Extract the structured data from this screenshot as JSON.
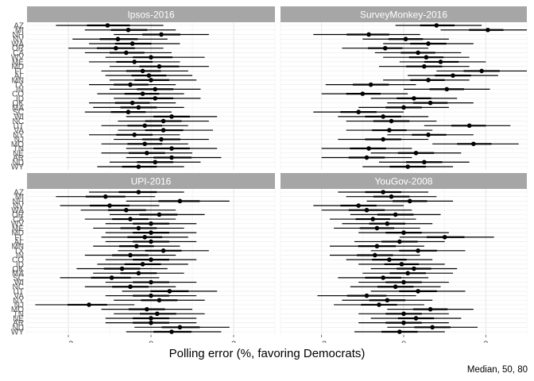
{
  "chart_data": {
    "type": "scatter",
    "xlabel": "Polling error (%, favoring Democrats)",
    "caption": "Median, 50, 80",
    "xlim": [
      -3,
      3
    ],
    "x_ticks": [
      -2,
      0,
      2
    ],
    "grid": true,
    "y_tick_labels": [
      "AZ",
      "MI",
      "NH",
      "NV",
      "WA",
      "OR",
      "CA",
      "WV",
      "ME",
      "MD",
      "FL",
      "AL",
      "MN",
      "TX",
      "IN",
      "CO",
      "ID",
      "OK",
      "MA",
      "SC",
      "WI",
      "NC",
      "UT",
      "VA",
      "NY",
      "NJ",
      "MO",
      "TN",
      "NE",
      "AR",
      "ND",
      "WY"
    ],
    "panels": [
      {
        "title": "Ipsos-2016",
        "rows": [
          {
            "median": -1.05,
            "lo80": -2.3,
            "hi80": 0.3
          },
          {
            "median": -0.55,
            "lo80": -1.6,
            "hi80": 0.6
          },
          {
            "median": 0.25,
            "lo80": -0.9,
            "hi80": 1.4
          },
          {
            "median": -0.8,
            "lo80": -1.9,
            "hi80": 0.4
          },
          {
            "median": -0.45,
            "lo80": -1.5,
            "hi80": 0.7
          },
          {
            "median": -0.85,
            "lo80": -2.0,
            "hi80": 0.3
          },
          {
            "median": -0.6,
            "lo80": -1.6,
            "hi80": 0.5
          },
          {
            "median": 0.0,
            "lo80": -1.1,
            "hi80": 1.3
          },
          {
            "median": -0.4,
            "lo80": -1.5,
            "hi80": 0.7
          },
          {
            "median": 0.2,
            "lo80": -1.0,
            "hi80": 1.4
          },
          {
            "median": -0.2,
            "lo80": -1.2,
            "hi80": 0.9
          },
          {
            "median": -0.05,
            "lo80": -1.1,
            "hi80": 1.0
          },
          {
            "median": 0.0,
            "lo80": -1.0,
            "hi80": 1.1
          },
          {
            "median": -0.5,
            "lo80": -1.5,
            "hi80": 0.6
          },
          {
            "median": 0.1,
            "lo80": -1.0,
            "hi80": 1.2
          },
          {
            "median": -0.2,
            "lo80": -1.3,
            "hi80": 0.8
          },
          {
            "median": 0.1,
            "lo80": -0.9,
            "hi80": 1.2
          },
          {
            "median": -0.45,
            "lo80": -1.5,
            "hi80": 0.6
          },
          {
            "median": -0.3,
            "lo80": -1.4,
            "hi80": 0.8
          },
          {
            "median": -0.55,
            "lo80": -1.6,
            "hi80": 0.5
          },
          {
            "median": 0.5,
            "lo80": -0.6,
            "hi80": 1.6
          },
          {
            "median": 0.3,
            "lo80": -0.8,
            "hi80": 1.4
          },
          {
            "median": -0.15,
            "lo80": -1.2,
            "hi80": 0.9
          },
          {
            "median": 0.3,
            "lo80": -0.8,
            "hi80": 1.5
          },
          {
            "median": -0.4,
            "lo80": -1.5,
            "hi80": 0.7
          },
          {
            "median": 0.25,
            "lo80": -0.9,
            "hi80": 1.4
          },
          {
            "median": -0.15,
            "lo80": -1.2,
            "hi80": 0.9
          },
          {
            "median": 0.5,
            "lo80": -0.6,
            "hi80": 1.6
          },
          {
            "median": -0.1,
            "lo80": -1.2,
            "hi80": 1.0
          },
          {
            "median": 0.5,
            "lo80": -0.6,
            "hi80": 1.7
          },
          {
            "median": 0.1,
            "lo80": -1.0,
            "hi80": 1.2
          },
          {
            "median": -0.3,
            "lo80": -1.3,
            "hi80": 0.8
          }
        ]
      },
      {
        "title": "SurveyMonkey-2016",
        "rows": [
          {
            "median": 0.8,
            "lo80": -0.2,
            "hi80": 1.9
          },
          {
            "median": 2.05,
            "lo80": 0.9,
            "hi80": 3.0
          },
          {
            "median": -0.85,
            "lo80": -2.2,
            "hi80": 0.4
          },
          {
            "median": 0.05,
            "lo80": -1.0,
            "hi80": 1.1
          },
          {
            "median": 0.6,
            "lo80": -0.5,
            "hi80": 1.7
          },
          {
            "median": -0.45,
            "lo80": -1.5,
            "hi80": 0.6
          },
          {
            "median": 0.35,
            "lo80": -0.7,
            "hi80": 1.4
          },
          {
            "median": 0.55,
            "lo80": -0.5,
            "hi80": 1.6
          },
          {
            "median": 0.9,
            "lo80": -0.1,
            "hi80": 2.0
          },
          {
            "median": 0.5,
            "lo80": -0.6,
            "hi80": 1.6
          },
          {
            "median": 1.9,
            "lo80": 0.8,
            "hi80": 3.0
          },
          {
            "median": 1.2,
            "lo80": 0.1,
            "hi80": 2.3
          },
          {
            "median": 0.6,
            "lo80": -0.5,
            "hi80": 1.6
          },
          {
            "median": -0.8,
            "lo80": -1.9,
            "hi80": 0.3
          },
          {
            "median": 1.05,
            "lo80": 0.0,
            "hi80": 2.1
          },
          {
            "median": -1.0,
            "lo80": -2.0,
            "hi80": 0.1
          },
          {
            "median": 0.25,
            "lo80": -0.8,
            "hi80": 1.3
          },
          {
            "median": 0.65,
            "lo80": -0.4,
            "hi80": 1.7
          },
          {
            "median": 0.0,
            "lo80": -1.1,
            "hi80": 1.1
          },
          {
            "median": -1.1,
            "lo80": -2.2,
            "hi80": 0.0
          },
          {
            "median": -0.5,
            "lo80": -1.6,
            "hi80": 0.6
          },
          {
            "median": -0.3,
            "lo80": -1.4,
            "hi80": 0.8
          },
          {
            "median": 1.6,
            "lo80": 0.5,
            "hi80": 2.6
          },
          {
            "median": -0.35,
            "lo80": -1.4,
            "hi80": 0.7
          },
          {
            "median": 0.6,
            "lo80": -0.4,
            "hi80": 1.7
          },
          {
            "median": -0.5,
            "lo80": -1.6,
            "hi80": 0.6
          },
          {
            "median": 1.7,
            "lo80": 0.7,
            "hi80": 2.8
          },
          {
            "median": -0.85,
            "lo80": -2.0,
            "hi80": 0.2
          },
          {
            "median": 0.3,
            "lo80": -0.8,
            "hi80": 1.4
          },
          {
            "median": -0.9,
            "lo80": -2.0,
            "hi80": 0.2
          },
          {
            "median": 0.5,
            "lo80": -0.6,
            "hi80": 1.6
          },
          {
            "median": 0.1,
            "lo80": -1.0,
            "hi80": 1.2
          }
        ]
      },
      {
        "title": "UPI-2016",
        "rows": [
          {
            "median": -0.3,
            "lo80": -1.5,
            "hi80": 0.8
          },
          {
            "median": -1.1,
            "lo80": -2.3,
            "hi80": 0.1
          },
          {
            "median": 0.7,
            "lo80": -0.6,
            "hi80": 1.9
          },
          {
            "median": -1.0,
            "lo80": -2.2,
            "hi80": 0.2
          },
          {
            "median": -0.6,
            "lo80": -1.7,
            "hi80": 0.6
          },
          {
            "median": 0.2,
            "lo80": -1.0,
            "hi80": 1.3
          },
          {
            "median": -0.5,
            "lo80": -1.6,
            "hi80": 0.6
          },
          {
            "median": 0.0,
            "lo80": -1.1,
            "hi80": 1.1
          },
          {
            "median": -0.3,
            "lo80": -1.4,
            "hi80": 0.8
          },
          {
            "median": 0.0,
            "lo80": -1.1,
            "hi80": 1.1
          },
          {
            "median": -0.15,
            "lo80": -1.2,
            "hi80": 0.9
          },
          {
            "median": 0.0,
            "lo80": -1.1,
            "hi80": 1.1
          },
          {
            "median": -0.35,
            "lo80": -1.4,
            "hi80": 0.7
          },
          {
            "median": 0.3,
            "lo80": -0.8,
            "hi80": 1.4
          },
          {
            "median": -0.5,
            "lo80": -1.6,
            "hi80": 0.6
          },
          {
            "median": 0.0,
            "lo80": -1.1,
            "hi80": 1.1
          },
          {
            "median": -0.2,
            "lo80": -1.3,
            "hi80": 0.9
          },
          {
            "median": -0.7,
            "lo80": -1.8,
            "hi80": 0.4
          },
          {
            "median": -0.3,
            "lo80": -1.4,
            "hi80": 0.8
          },
          {
            "median": -0.95,
            "lo80": -2.2,
            "hi80": 0.2
          },
          {
            "median": 0.0,
            "lo80": -1.1,
            "hi80": 1.1
          },
          {
            "median": -0.5,
            "lo80": -1.6,
            "hi80": 0.6
          },
          {
            "median": 0.45,
            "lo80": -0.7,
            "hi80": 1.6
          },
          {
            "median": 0.0,
            "lo80": -1.1,
            "hi80": 1.1
          },
          {
            "median": 0.2,
            "lo80": -0.9,
            "hi80": 1.3
          },
          {
            "median": -1.5,
            "lo80": -2.8,
            "hi80": -0.4
          },
          {
            "median": -0.1,
            "lo80": -1.2,
            "hi80": 1.0
          },
          {
            "median": 0.15,
            "lo80": -0.9,
            "hi80": 1.3
          },
          {
            "median": 0.0,
            "lo80": -1.1,
            "hi80": 1.1
          },
          {
            "median": 0.0,
            "lo80": -1.1,
            "hi80": 1.1
          },
          {
            "median": 0.7,
            "lo80": -0.4,
            "hi80": 1.9
          },
          {
            "median": 0.5,
            "lo80": -0.6,
            "hi80": 1.7
          }
        ]
      },
      {
        "title": "YouGov-2008",
        "rows": [
          {
            "median": -0.5,
            "lo80": -1.6,
            "hi80": 0.6
          },
          {
            "median": -0.3,
            "lo80": -1.4,
            "hi80": 0.8
          },
          {
            "median": 0.15,
            "lo80": -0.9,
            "hi80": 1.2
          },
          {
            "median": -1.1,
            "lo80": -2.2,
            "hi80": 0.0
          },
          {
            "median": -0.9,
            "lo80": -2.0,
            "hi80": 0.2
          },
          {
            "median": -0.2,
            "lo80": -1.3,
            "hi80": 0.9
          },
          {
            "median": -0.75,
            "lo80": -1.8,
            "hi80": 0.3
          },
          {
            "median": -0.4,
            "lo80": -1.5,
            "hi80": 0.7
          },
          {
            "median": -0.65,
            "lo80": -1.7,
            "hi80": 0.4
          },
          {
            "median": 0.0,
            "lo80": -1.1,
            "hi80": 1.1
          },
          {
            "median": 1.0,
            "lo80": -0.1,
            "hi80": 2.2
          },
          {
            "median": -0.1,
            "lo80": -1.2,
            "hi80": 1.0
          },
          {
            "median": -0.65,
            "lo80": -1.8,
            "hi80": 0.5
          },
          {
            "median": 0.35,
            "lo80": -0.8,
            "hi80": 1.5
          },
          {
            "median": -0.7,
            "lo80": -1.8,
            "hi80": 0.4
          },
          {
            "median": -0.35,
            "lo80": -1.4,
            "hi80": 0.7
          },
          {
            "median": -0.05,
            "lo80": -1.1,
            "hi80": 1.0
          },
          {
            "median": 0.25,
            "lo80": -0.8,
            "hi80": 1.3
          },
          {
            "median": 0.1,
            "lo80": -1.0,
            "hi80": 1.2
          },
          {
            "median": -0.5,
            "lo80": -1.6,
            "hi80": 0.6
          },
          {
            "median": 0.0,
            "lo80": -1.1,
            "hi80": 1.1
          },
          {
            "median": -0.2,
            "lo80": -1.3,
            "hi80": 0.9
          },
          {
            "median": 0.35,
            "lo80": -0.8,
            "hi80": 1.5
          },
          {
            "median": -0.9,
            "lo80": -2.1,
            "hi80": 0.3
          },
          {
            "median": -0.4,
            "lo80": -1.5,
            "hi80": 0.7
          },
          {
            "median": -0.6,
            "lo80": -1.7,
            "hi80": 0.5
          },
          {
            "median": 0.65,
            "lo80": -0.4,
            "hi80": 1.7
          },
          {
            "median": 0.0,
            "lo80": -1.1,
            "hi80": 1.1
          },
          {
            "median": 0.3,
            "lo80": -0.8,
            "hi80": 1.4
          },
          {
            "median": 0.0,
            "lo80": -1.1,
            "hi80": 1.1
          },
          {
            "median": 0.7,
            "lo80": -0.4,
            "hi80": 1.8
          },
          {
            "median": -0.1,
            "lo80": -1.2,
            "hi80": 1.0
          }
        ]
      }
    ]
  }
}
